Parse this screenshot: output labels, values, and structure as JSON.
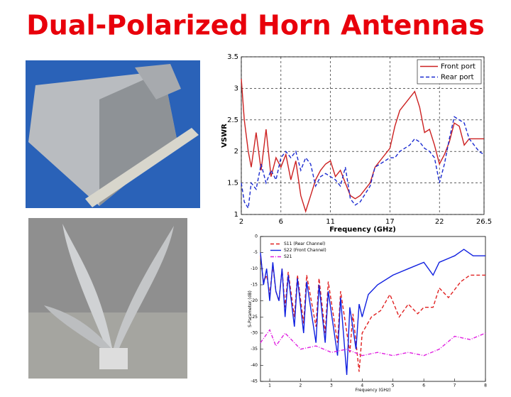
{
  "title": "Dual-Polarized Horn Antennas",
  "chart_data": [
    {
      "type": "line",
      "xlabel": "Frequency (GHz)",
      "ylabel": "VSWR",
      "xlim": [
        2,
        26.5
      ],
      "xticks": [
        2,
        6,
        11,
        17,
        22,
        26.5
      ],
      "ylim": [
        1,
        3.5
      ],
      "yticks": [
        1,
        1.5,
        2,
        2.5,
        3,
        3.5
      ],
      "grid": true,
      "legend": "upper right",
      "series": [
        {
          "name": "Front port",
          "color": "#cc2020",
          "linestyle": "solid",
          "x": [
            2,
            2.3,
            2.7,
            3,
            3.5,
            4,
            4.5,
            5,
            5.5,
            6,
            6.5,
            7,
            7.5,
            8,
            8.5,
            9,
            9.5,
            10,
            10.5,
            11,
            11.5,
            12,
            12.5,
            13,
            13.5,
            14,
            15,
            15.5,
            16,
            17,
            17.5,
            18,
            19,
            19.5,
            20,
            20.5,
            21,
            21.5,
            22,
            22.5,
            23,
            23.5,
            24,
            24.5,
            25,
            26,
            26.5
          ],
          "values": [
            3.15,
            2.5,
            2.0,
            1.75,
            2.3,
            1.7,
            2.35,
            1.6,
            1.9,
            1.75,
            1.95,
            1.55,
            1.85,
            1.3,
            1.05,
            1.3,
            1.55,
            1.7,
            1.8,
            1.85,
            1.6,
            1.7,
            1.5,
            1.3,
            1.25,
            1.3,
            1.5,
            1.75,
            1.85,
            2.05,
            2.4,
            2.65,
            2.85,
            2.95,
            2.7,
            2.3,
            2.35,
            2.1,
            1.8,
            1.95,
            2.15,
            2.45,
            2.4,
            2.1,
            2.2,
            2.2,
            2.2
          ]
        },
        {
          "name": "Rear port",
          "color": "#1a2ad0",
          "linestyle": "dashed",
          "x": [
            2,
            2.3,
            2.7,
            3,
            3.5,
            4,
            4.5,
            5,
            5.5,
            6,
            6.5,
            7,
            7.5,
            8,
            8.5,
            9,
            9.5,
            10,
            10.5,
            11,
            11.5,
            12,
            12.5,
            13,
            13.5,
            14,
            15,
            15.5,
            16,
            17,
            17.5,
            18,
            19,
            19.5,
            20,
            20.5,
            21,
            21.5,
            22,
            22.5,
            23,
            23.5,
            24,
            24.5,
            25,
            26,
            26.5
          ],
          "values": [
            1.5,
            1.2,
            1.1,
            1.5,
            1.4,
            1.8,
            1.5,
            1.7,
            1.55,
            1.9,
            2.0,
            1.9,
            2.0,
            1.7,
            1.9,
            1.8,
            1.45,
            1.6,
            1.65,
            1.6,
            1.55,
            1.45,
            1.75,
            1.25,
            1.15,
            1.2,
            1.45,
            1.75,
            1.8,
            1.9,
            1.9,
            2.0,
            2.1,
            2.2,
            2.15,
            2.05,
            2.0,
            1.9,
            1.5,
            1.8,
            2.2,
            2.55,
            2.5,
            2.45,
            2.2,
            2.0,
            1.95
          ]
        }
      ]
    },
    {
      "type": "line",
      "xlabel": "Frequency (GHz)",
      "ylabel": "S-Parameter (dB)",
      "xlim": [
        0.7,
        8
      ],
      "xticks": [
        1,
        2,
        3,
        4,
        5,
        6,
        7,
        8
      ],
      "ylim": [
        -45,
        0
      ],
      "yticks": [
        -45,
        -40,
        -35,
        -30,
        -25,
        -20,
        -15,
        -10,
        -5,
        0
      ],
      "grid": false,
      "legend": "upper left",
      "series": [
        {
          "name": "S11 (Rear Channel)",
          "color": "#e02020",
          "linestyle": "dashed",
          "x": [
            0.7,
            0.8,
            0.9,
            1.0,
            1.1,
            1.2,
            1.3,
            1.4,
            1.5,
            1.6,
            1.8,
            1.9,
            2.1,
            2.2,
            2.5,
            2.6,
            2.8,
            2.9,
            3.2,
            3.3,
            3.6,
            3.7,
            3.9,
            4.0,
            4.3,
            4.6,
            4.9,
            5.2,
            5.5,
            5.8,
            6,
            6.3,
            6.5,
            6.8,
            7.2,
            7.5,
            8
          ],
          "values": [
            -6,
            -14,
            -12,
            -18,
            -9,
            -17,
            -20,
            -10,
            -22,
            -11,
            -25,
            -12,
            -27,
            -12,
            -28,
            -13,
            -30,
            -14,
            -33,
            -17,
            -36,
            -24,
            -42,
            -30,
            -25,
            -23,
            -18,
            -25,
            -21,
            -24,
            -22,
            -22,
            -16,
            -19,
            -14,
            -12,
            -12
          ]
        },
        {
          "name": "S22 (Front Channel)",
          "color": "#1020e0",
          "linestyle": "solid",
          "x": [
            0.7,
            0.8,
            0.9,
            1.0,
            1.1,
            1.2,
            1.3,
            1.4,
            1.5,
            1.6,
            1.8,
            1.9,
            2.1,
            2.2,
            2.5,
            2.6,
            2.8,
            2.9,
            3.2,
            3.3,
            3.5,
            3.6,
            3.8,
            3.9,
            4.0,
            4.2,
            4.5,
            5,
            5.5,
            6,
            6.3,
            6.5,
            7,
            7.3,
            7.6,
            8
          ],
          "values": [
            -5,
            -15,
            -10,
            -20,
            -8,
            -17,
            -20,
            -10,
            -25,
            -12,
            -28,
            -13,
            -30,
            -14,
            -33,
            -15,
            -33,
            -17,
            -37,
            -19,
            -43,
            -22,
            -35,
            -21,
            -25,
            -18,
            -15,
            -12,
            -10,
            -8,
            -12,
            -8,
            -6,
            -4,
            -6,
            -6
          ]
        },
        {
          "name": "S21",
          "color": "#e020e0",
          "linestyle": "dashdot",
          "x": [
            0.7,
            1,
            1.2,
            1.5,
            2,
            2.5,
            3,
            3.5,
            4,
            4.5,
            5,
            5.5,
            6,
            6.5,
            7,
            7.5,
            8
          ],
          "values": [
            -33,
            -29,
            -34,
            -30,
            -35,
            -34,
            -36,
            -35,
            -37,
            -36,
            -37,
            -36,
            -37,
            -35,
            -31,
            -32,
            -30
          ]
        }
      ]
    }
  ]
}
